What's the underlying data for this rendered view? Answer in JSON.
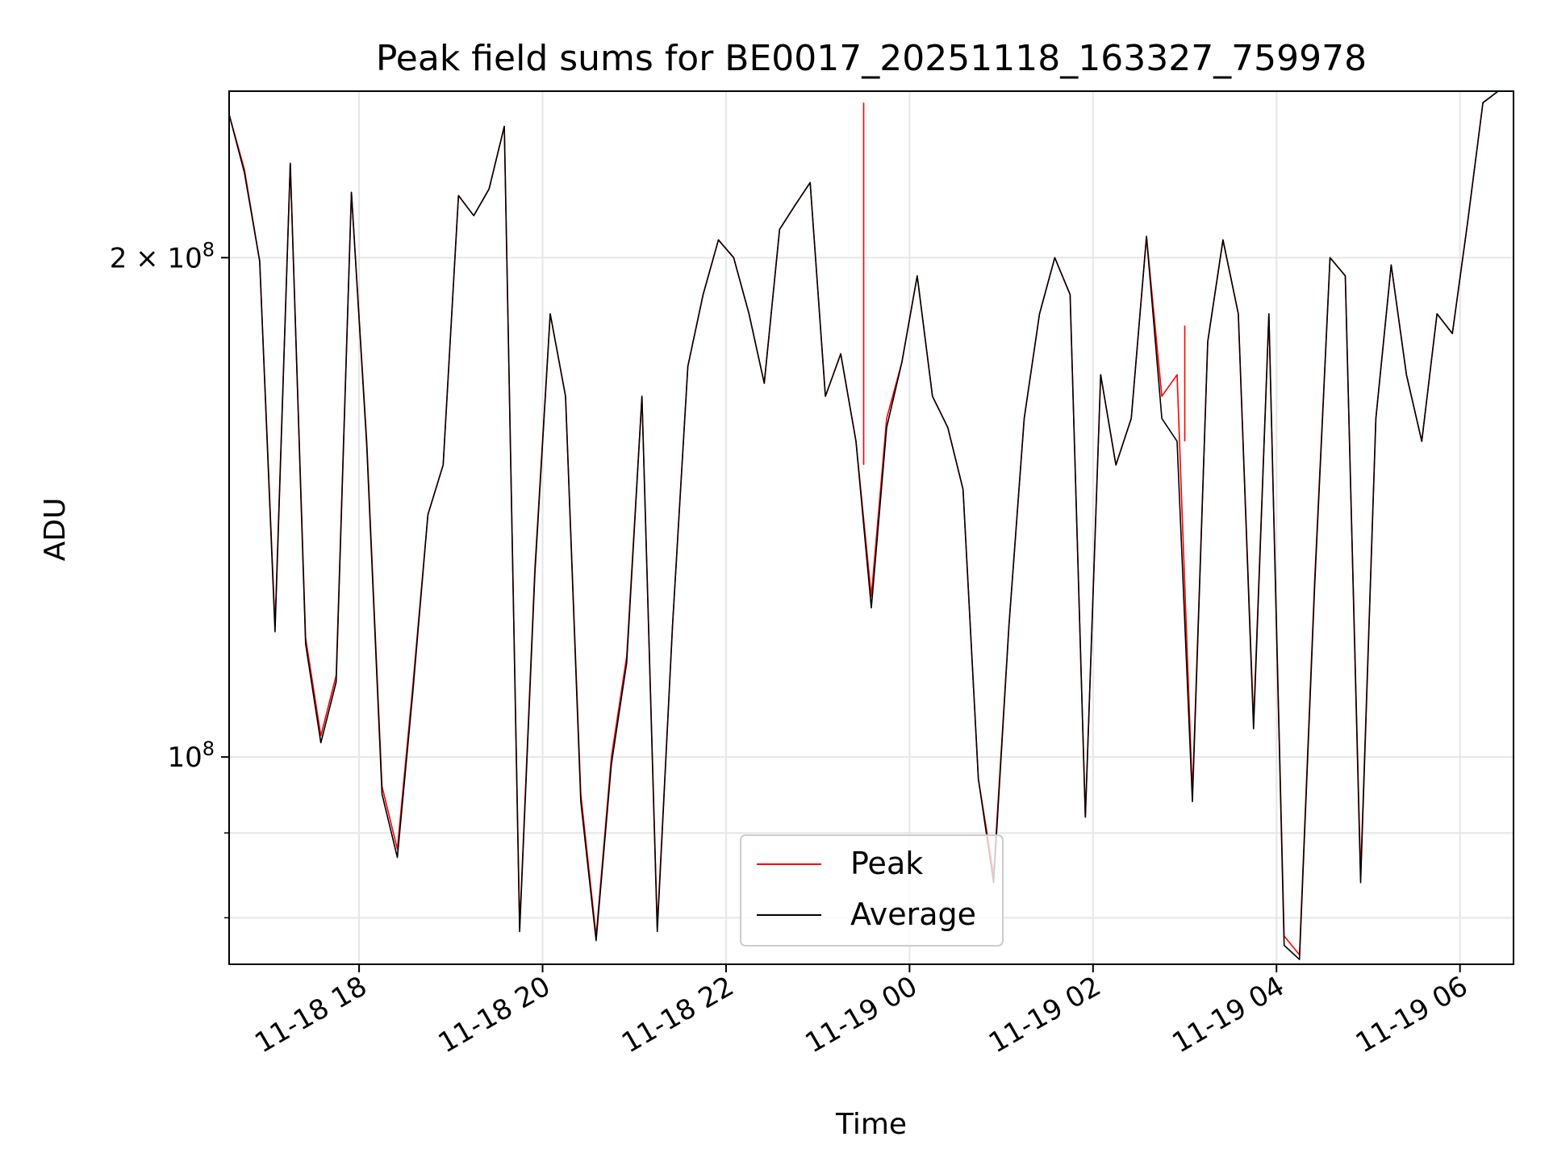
{
  "chart_data": {
    "type": "line",
    "title": "Peak field sums for BE0017_20251118_163327_759978",
    "xlabel": "Time",
    "ylabel": "ADU",
    "yscale": "log",
    "xlim": [
      "2025-11-18 16:35",
      "2025-11-19 06:35"
    ],
    "ylim": [
      75000000,
      252000000
    ],
    "x_ticks": [
      "11-18 18",
      "11-18 20",
      "11-18 22",
      "11-19 00",
      "11-19 02",
      "11-19 04",
      "11-19 06"
    ],
    "y_major_ticks": [
      {
        "value": 100000000,
        "base": "10",
        "exp": "8",
        "coef": ""
      },
      {
        "value": 200000000,
        "base": "10",
        "exp": "8",
        "coef": "2 × "
      }
    ],
    "y_minor_ticks": [
      80000000,
      90000000
    ],
    "grid": true,
    "legend_position": "bottom-center",
    "x": [
      "2025-11-18 16:35",
      "2025-11-18 16:45",
      "2025-11-18 16:55",
      "2025-11-18 17:05",
      "2025-11-18 17:15",
      "2025-11-18 17:25",
      "2025-11-18 17:35",
      "2025-11-18 17:45",
      "2025-11-18 17:55",
      "2025-11-18 18:05",
      "2025-11-18 18:15",
      "2025-11-18 18:25",
      "2025-11-18 18:35",
      "2025-11-18 18:45",
      "2025-11-18 18:55",
      "2025-11-18 19:05",
      "2025-11-18 19:15",
      "2025-11-18 19:25",
      "2025-11-18 19:35",
      "2025-11-18 19:45",
      "2025-11-18 19:55",
      "2025-11-18 20:05",
      "2025-11-18 20:15",
      "2025-11-18 20:25",
      "2025-11-18 20:35",
      "2025-11-18 20:45",
      "2025-11-18 20:55",
      "2025-11-18 21:05",
      "2025-11-18 21:15",
      "2025-11-18 21:25",
      "2025-11-18 21:35",
      "2025-11-18 21:45",
      "2025-11-18 21:55",
      "2025-11-18 22:05",
      "2025-11-18 22:15",
      "2025-11-18 22:25",
      "2025-11-18 22:35",
      "2025-11-18 22:45",
      "2025-11-18 22:55",
      "2025-11-18 23:05",
      "2025-11-18 23:15",
      "2025-11-18 23:25",
      "2025-11-18 23:35",
      "2025-11-18 23:45",
      "2025-11-18 23:55",
      "2025-11-19 00:05",
      "2025-11-19 00:15",
      "2025-11-19 00:25",
      "2025-11-19 00:35",
      "2025-11-19 00:45",
      "2025-11-19 00:55",
      "2025-11-19 01:05",
      "2025-11-19 01:15",
      "2025-11-19 01:25",
      "2025-11-19 01:35",
      "2025-11-19 01:45",
      "2025-11-19 01:55",
      "2025-11-19 02:05",
      "2025-11-19 02:15",
      "2025-11-19 02:25",
      "2025-11-19 02:35",
      "2025-11-19 02:45",
      "2025-11-19 02:55",
      "2025-11-19 03:05",
      "2025-11-19 03:15",
      "2025-11-19 03:25",
      "2025-11-19 03:35",
      "2025-11-19 03:45",
      "2025-11-19 03:55",
      "2025-11-19 04:05",
      "2025-11-19 04:15",
      "2025-11-19 04:25",
      "2025-11-19 04:35",
      "2025-11-19 04:45",
      "2025-11-19 04:55",
      "2025-11-19 05:05",
      "2025-11-19 05:15",
      "2025-11-19 05:25",
      "2025-11-19 05:35",
      "2025-11-19 05:45",
      "2025-11-19 05:55",
      "2025-11-19 06:05",
      "2025-11-19 06:15",
      "2025-11-19 06:25",
      "2025-11-19 06:35"
    ],
    "series": [
      {
        "name": "Peak",
        "color": "#ff0000",
        "values": [
          244000000,
          226000000,
          199000000,
          120000000,
          228000000,
          118000000,
          103000000,
          112000000,
          219000000,
          155000000,
          96000000,
          88000000,
          110000000,
          140000000,
          150000000,
          218000000,
          212000000,
          220000000,
          240000000,
          79000000,
          130000000,
          185000000,
          165000000,
          95000000,
          78000000,
          100000000,
          115000000,
          165000000,
          79000000,
          120000000,
          172000000,
          190000000,
          205000000,
          200000000,
          185000000,
          168000000,
          208000000,
          215000000,
          222000000,
          165000000,
          175000000,
          155000000,
          125000000,
          160000000,
          173000000,
          195000000,
          165000000,
          158000000,
          145000000,
          97000000,
          85000000,
          120000000,
          160000000,
          185000000,
          200000000,
          190000000,
          92000000,
          170000000,
          150000000,
          160000000,
          206000000,
          165000000,
          170000000,
          95000000,
          178000000,
          205000000,
          185000000,
          105000000,
          185000000,
          78000000,
          76000000,
          128000000,
          200000000,
          195000000,
          85000000,
          160000000,
          198000000,
          170000000,
          155000000,
          185000000,
          180000000,
          210000000,
          248000000,
          252000000,
          252000000
        ]
      },
      {
        "name": "Average",
        "color": "#000000",
        "values": [
          244000000,
          225000000,
          199000000,
          119000000,
          228000000,
          117000000,
          102000000,
          111000000,
          219000000,
          154000000,
          95000000,
          87000000,
          109000000,
          140000000,
          150000000,
          218000000,
          212000000,
          220000000,
          240000000,
          78500000,
          129000000,
          185000000,
          165000000,
          94000000,
          77500000,
          99000000,
          114000000,
          165000000,
          78500000,
          120000000,
          172000000,
          190000000,
          205000000,
          200000000,
          185000000,
          168000000,
          208000000,
          215000000,
          222000000,
          165000000,
          175000000,
          155000000,
          123000000,
          158000000,
          173000000,
          195000000,
          165000000,
          158000000,
          145000000,
          97000000,
          84000000,
          120000000,
          160000000,
          185000000,
          200000000,
          190000000,
          92000000,
          170000000,
          150000000,
          160000000,
          206000000,
          160000000,
          155000000,
          94000000,
          178000000,
          205000000,
          185000000,
          104000000,
          185000000,
          77000000,
          75500000,
          127000000,
          200000000,
          195000000,
          84000000,
          160000000,
          198000000,
          170000000,
          155000000,
          185000000,
          180000000,
          210000000,
          248000000,
          252000000,
          252000000
        ]
      }
    ],
    "annotations": [
      {
        "series": "Peak",
        "x": "2025-11-18 23:30",
        "y_from": 150000000,
        "y_to": 248000000
      },
      {
        "series": "Peak",
        "x": "2025-11-19 03:00",
        "y_from": 155000000,
        "y_to": 182000000
      }
    ]
  }
}
